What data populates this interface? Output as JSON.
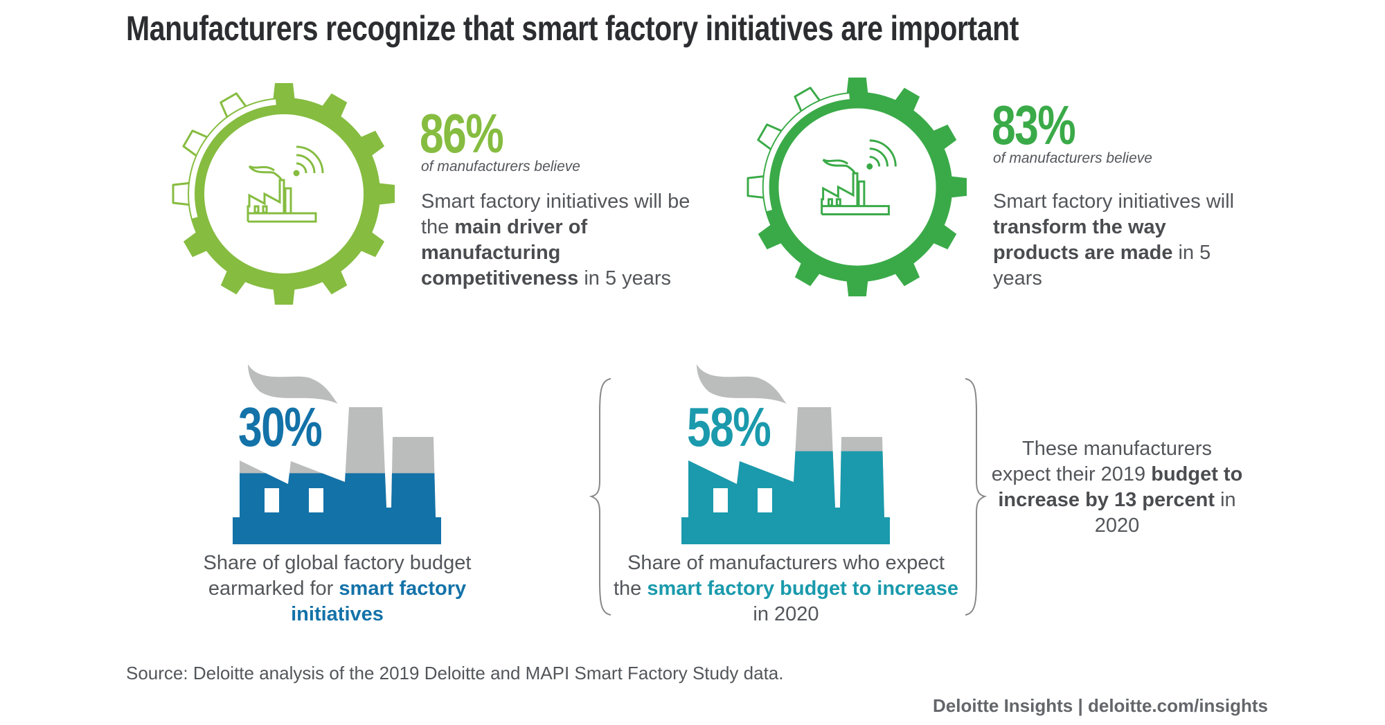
{
  "title": "Manufacturers recognize that smart factory initiatives are important",
  "colors": {
    "green_light": "#86bc40",
    "green": "#3aaa48",
    "blue": "#1372a8",
    "teal": "#1a9aac",
    "gray": "#bbbcbc",
    "text": "#53565a"
  },
  "stat1": {
    "value": "86%",
    "subtitle": "of manufacturers believe",
    "text_pre": "Smart factory initiatives will be the ",
    "text_bold": "main driver of manufacturing competitiveness",
    "text_post": " in 5 years",
    "icon": "gear-factory-wifi-icon"
  },
  "stat2": {
    "value": "83%",
    "subtitle": "of manufacturers believe",
    "text_pre": "Smart factory initiatives will ",
    "text_bold": "transform the way products are made",
    "text_post": " in 5 years",
    "icon": "gear-factory-wifi-icon"
  },
  "stat3": {
    "value": "30%",
    "fill_level_percent": 30,
    "text_pre": "Share of global factory budget earmarked for ",
    "text_bold": "smart factory initiatives",
    "text_post": "",
    "icon": "factory-icon"
  },
  "stat4": {
    "value": "58%",
    "fill_level_percent": 58,
    "text_pre": "Share of manufacturers who expect the ",
    "text_bold": "smart factory budget to increase",
    "text_post": " in 2020",
    "icon": "factory-icon"
  },
  "note": {
    "text_pre": "These manufacturers expect their 2019 ",
    "text_bold": "budget to increase by 13 percent",
    "text_post": " in 2020"
  },
  "source": "Source: Deloitte analysis of the 2019 Deloitte and MAPI Smart Factory Study data.",
  "footer": "Deloitte Insights | deloitte.com/insights"
}
